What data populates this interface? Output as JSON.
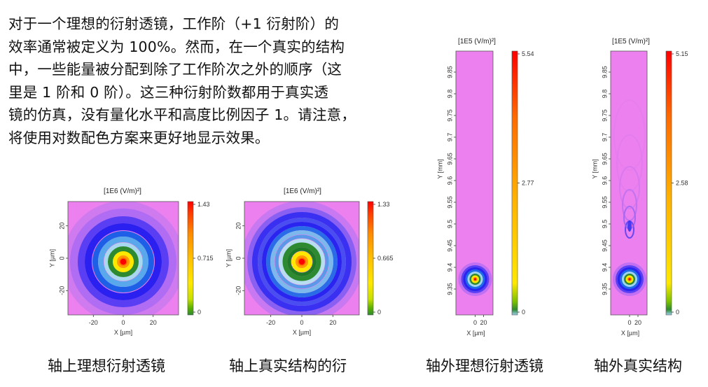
{
  "paragraph": {
    "lines": [
      "对于一个理想的衍射透镜，工作阶（+1 衍射阶）的",
      "效率通常被定义为 100%。然而，在一个真实的结构",
      "中，一些能量被分配到除了工作阶次之外的顺序（这",
      "里是 1 阶和 0 阶）。这三种衍射阶数都用于真实透",
      "镜的仿真，没有量化水平和高度比例因子 1。请注意，",
      "将使用对数配色方案来更好地显示效果。"
    ]
  },
  "colors": {
    "background": "#EC80EE",
    "scale": [
      "#EC80EE",
      "#B06CF2",
      "#2A20F0",
      "#1E7FE0",
      "#9ED0EE",
      "#2E8A30",
      "#FFE800",
      "#FF8A00",
      "#FF0000"
    ]
  },
  "chart_data": [
    {
      "type": "heatmap",
      "title": "[1E6 (V/m)²]",
      "xlabel": "X [µm]",
      "ylabel": "Y [µm]",
      "xticks": [
        "-20",
        "0",
        "20"
      ],
      "yticks": [
        "20",
        "0",
        "-20"
      ],
      "xlim": [
        -37,
        37
      ],
      "ylim": [
        -35,
        35
      ],
      "colorbar": {
        "max": "1.43",
        "mid": "0.715",
        "min": "0"
      },
      "caption": "轴上理想衍射透镜",
      "pattern": "ideal-on-axis"
    },
    {
      "type": "heatmap",
      "title": "[1E6 (V/m)²]",
      "xlabel": "X [µm]",
      "ylabel": "Y [µm]",
      "xticks": [
        "-20",
        "0",
        "20"
      ],
      "yticks": [
        "20",
        "0",
        "-20"
      ],
      "xlim": [
        -37,
        37
      ],
      "ylim": [
        -35,
        35
      ],
      "colorbar": {
        "max": "1.33",
        "mid": "0.665",
        "min": "0"
      },
      "caption": "轴上真实结构的衍",
      "pattern": "real-on-axis"
    },
    {
      "type": "heatmap",
      "title": "[1E5 (V/m)²]",
      "xlabel": "X [µm]",
      "ylabel": "Y [mm]",
      "xticks": [
        "0",
        "20"
      ],
      "yticks": [
        "9.85",
        "9.8",
        "9.75",
        "9.7",
        "9.65",
        "9.6",
        "9.55",
        "9.5",
        "9.45",
        "9.4",
        "9.35"
      ],
      "colorbar": {
        "max": "5.54",
        "mid": "2.77",
        "min": "0"
      },
      "caption": "轴外理想衍射透镜",
      "pattern": "ideal-off-axis"
    },
    {
      "type": "heatmap",
      "title": "[1E5 (V/m)²]",
      "xlabel": "X [µm]",
      "ylabel": "Y [mm]",
      "xticks": [
        "0",
        "20"
      ],
      "yticks": [
        "9.85",
        "9.8",
        "9.75",
        "9.7",
        "9.65",
        "9.6",
        "9.55",
        "9.5",
        "9.45",
        "9.4",
        "9.35"
      ],
      "colorbar": {
        "max": "5.15",
        "mid": "2.58",
        "min": "0"
      },
      "caption": "轴外真实结构",
      "pattern": "real-off-axis"
    }
  ]
}
